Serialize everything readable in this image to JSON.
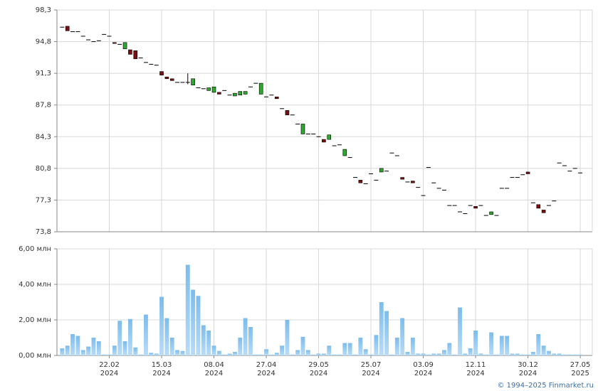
{
  "chart_data": [
    {
      "type": "candlestick",
      "up_color": "#2ea82e",
      "down_color": "#7a0f0f",
      "flat_color": "#000000",
      "grid": true,
      "xlim": [
        -1,
        101.3
      ],
      "ylim": [
        73.8,
        98.3
      ],
      "yticks": [
        {
          "value": 73.8,
          "label": "73,8"
        },
        {
          "value": 77.3,
          "label": "77,3"
        },
        {
          "value": 80.8,
          "label": "80,8"
        },
        {
          "value": 84.3,
          "label": "84,3"
        },
        {
          "value": 87.8,
          "label": "87,8"
        },
        {
          "value": 91.3,
          "label": "91,3"
        },
        {
          "value": 94.8,
          "label": "94,8"
        },
        {
          "value": 98.3,
          "label": "98,3"
        }
      ],
      "open": [
        96.4,
        96.5,
        95.9,
        95.9,
        95.4,
        95.0,
        94.8,
        94.9,
        95.6,
        95.4,
        94.7,
        94.5,
        94.0,
        93.9,
        93.8,
        93.0,
        92.5,
        92.3,
        92.2,
        91.5,
        90.9,
        90.7,
        90.3,
        90.3,
        90.3,
        90.0,
        89.7,
        89.6,
        89.4,
        89.2,
        89.2,
        89.4,
        88.9,
        88.8,
        88.9,
        89.0,
        89.8,
        90.2,
        89.0,
        88.7,
        88.9,
        88.7,
        87.4,
        87.2,
        86.7,
        85.7,
        84.6,
        84.6,
        84.6,
        84.3,
        84.0,
        84.0,
        83.3,
        83.4,
        82.2,
        82.0,
        79.8,
        79.5,
        79.1,
        80.2,
        79.5,
        80.4,
        80.5,
        82.5,
        82.2,
        79.8,
        79.3,
        79.4,
        78.7,
        77.8,
        80.9,
        79.2,
        78.6,
        78.4,
        76.7,
        76.7,
        76.0,
        75.8,
        76.7,
        76.6,
        76.7,
        75.6,
        75.7,
        75.6,
        78.6,
        78.6,
        79.8,
        79.8,
        80.1,
        80.4,
        77.0,
        76.8,
        76.2,
        76.7,
        77.2,
        81.4,
        81.1,
        80.5,
        80.8,
        80.3
      ],
      "high": [
        96.4,
        96.5,
        95.9,
        95.9,
        95.4,
        95.0,
        94.8,
        94.9,
        95.6,
        95.4,
        94.7,
        94.5,
        94.7,
        93.9,
        93.8,
        93.0,
        92.5,
        92.3,
        92.2,
        91.5,
        90.9,
        90.7,
        90.3,
        90.3,
        91.3,
        90.7,
        89.7,
        89.6,
        89.7,
        89.8,
        89.2,
        89.4,
        88.9,
        89.1,
        89.3,
        89.3,
        89.8,
        90.2,
        90.2,
        88.7,
        88.9,
        88.7,
        87.4,
        87.2,
        86.7,
        85.7,
        85.7,
        84.6,
        84.6,
        84.3,
        84.0,
        84.5,
        83.3,
        83.4,
        82.9,
        82.0,
        79.8,
        79.5,
        79.1,
        80.2,
        79.5,
        80.8,
        80.5,
        82.5,
        82.2,
        79.8,
        79.3,
        79.4,
        78.7,
        77.8,
        80.9,
        79.2,
        78.6,
        78.4,
        76.7,
        76.7,
        76.0,
        75.8,
        76.7,
        76.6,
        76.7,
        75.6,
        76.0,
        75.6,
        78.6,
        78.6,
        79.8,
        79.8,
        80.1,
        80.4,
        77.0,
        76.8,
        76.2,
        76.7,
        77.2,
        81.4,
        81.1,
        80.5,
        80.8,
        80.3
      ],
      "low": [
        96.4,
        96.0,
        95.9,
        95.9,
        95.4,
        95.0,
        94.8,
        94.9,
        95.6,
        95.4,
        94.6,
        94.5,
        94.0,
        93.4,
        92.9,
        93.0,
        92.5,
        92.3,
        92.2,
        91.1,
        90.7,
        90.5,
        90.3,
        90.3,
        90.1,
        90.0,
        89.7,
        89.6,
        89.4,
        89.2,
        89.0,
        89.4,
        88.9,
        88.8,
        88.9,
        89.0,
        89.8,
        90.2,
        89.0,
        88.7,
        88.9,
        88.5,
        87.4,
        86.7,
        86.7,
        85.7,
        84.6,
        84.6,
        84.6,
        84.3,
        83.7,
        84.0,
        83.3,
        83.4,
        82.2,
        82.0,
        79.8,
        79.2,
        79.1,
        80.2,
        79.5,
        80.4,
        80.5,
        82.5,
        82.2,
        79.6,
        79.3,
        79.2,
        78.7,
        77.8,
        80.9,
        79.2,
        78.6,
        78.4,
        76.7,
        76.7,
        76.0,
        75.8,
        76.7,
        76.4,
        76.7,
        75.6,
        75.7,
        75.6,
        78.6,
        78.6,
        79.8,
        79.8,
        80.1,
        80.2,
        77.0,
        76.4,
        75.9,
        76.7,
        77.2,
        81.4,
        81.1,
        80.5,
        80.8,
        80.3
      ],
      "close": [
        96.4,
        96.0,
        95.9,
        95.9,
        95.4,
        95.0,
        94.8,
        94.9,
        95.6,
        95.4,
        94.6,
        94.5,
        94.7,
        93.4,
        92.9,
        93.0,
        92.5,
        92.3,
        92.2,
        91.1,
        90.7,
        90.5,
        90.3,
        90.3,
        90.3,
        90.7,
        89.7,
        89.6,
        89.7,
        89.8,
        89.0,
        89.4,
        88.9,
        89.1,
        89.3,
        89.3,
        89.8,
        90.2,
        90.2,
        88.7,
        88.9,
        88.5,
        87.4,
        86.7,
        86.7,
        85.7,
        85.7,
        84.6,
        84.6,
        84.3,
        83.7,
        84.5,
        83.3,
        83.4,
        82.9,
        82.0,
        79.8,
        79.2,
        79.1,
        80.2,
        79.5,
        80.8,
        80.5,
        82.5,
        82.2,
        79.6,
        79.3,
        79.2,
        78.7,
        77.8,
        80.9,
        79.2,
        78.6,
        78.4,
        76.7,
        76.7,
        76.0,
        75.8,
        76.7,
        76.4,
        76.7,
        75.6,
        76.0,
        75.6,
        78.6,
        78.6,
        79.8,
        79.8,
        80.1,
        80.2,
        77.0,
        76.4,
        75.9,
        76.7,
        77.2,
        81.4,
        81.1,
        80.5,
        80.8,
        80.3
      ]
    },
    {
      "type": "bar",
      "color": "#8cc6f0",
      "grid": true,
      "xlim": [
        -1,
        101.3
      ],
      "ylim": [
        0,
        6
      ],
      "yticks": [
        {
          "value": 0,
          "label": "0,00 млн"
        },
        {
          "value": 2,
          "label": "2,00 млн"
        },
        {
          "value": 4,
          "label": "4,00 млн"
        },
        {
          "value": 6,
          "label": "6,00 млн"
        }
      ],
      "xticks": [
        {
          "value": 9,
          "label": "22.02",
          "year": "2024"
        },
        {
          "value": 19,
          "label": "15.03",
          "year": "2024"
        },
        {
          "value": 29,
          "label": "08.04",
          "year": "2024"
        },
        {
          "value": 39,
          "label": "27.04",
          "year": "2024"
        },
        {
          "value": 49,
          "label": "29.05",
          "year": "2024"
        },
        {
          "value": 59,
          "label": "25.07",
          "year": "2024"
        },
        {
          "value": 69,
          "label": "03.09",
          "year": "2024"
        },
        {
          "value": 79,
          "label": "12.11",
          "year": "2024"
        },
        {
          "value": 89,
          "label": "30.12",
          "year": "2024"
        },
        {
          "value": 99,
          "label": "27.05",
          "year": "2025"
        }
      ],
      "values": [
        0.4,
        0.55,
        1.2,
        1.1,
        0.3,
        0.5,
        1.0,
        0.8,
        0.05,
        0.05,
        0.55,
        1.95,
        0.8,
        2.05,
        0.45,
        0.05,
        2.3,
        0.15,
        0.1,
        3.3,
        2.1,
        1.0,
        0.3,
        0.25,
        5.1,
        3.7,
        3.35,
        1.7,
        1.4,
        0.55,
        0.25,
        0.05,
        0.1,
        0.2,
        1.0,
        2.1,
        1.6,
        0.05,
        0.05,
        0.35,
        0.05,
        0.15,
        0.55,
        2.0,
        0.05,
        0.3,
        1.05,
        0.3,
        0.05,
        0.1,
        0.1,
        0.55,
        0.05,
        0.05,
        0.7,
        0.7,
        0.05,
        1.0,
        0.35,
        0.05,
        1.15,
        3.0,
        2.5,
        0.05,
        1.0,
        2.1,
        0.2,
        1.0,
        0.1,
        0.1,
        0.05,
        0.1,
        0.1,
        0.3,
        0.7,
        0.05,
        2.7,
        0.1,
        0.4,
        1.4,
        0.1,
        0.05,
        1.3,
        0.05,
        1.1,
        1.1,
        0.1,
        0.1,
        0.05,
        0.05,
        0.2,
        1.2,
        0.55,
        0.25,
        0.1,
        0.1,
        0.05,
        0.05,
        0.05,
        0.05
      ]
    }
  ],
  "footer": "© 1994–2025 Finmarket.ru"
}
